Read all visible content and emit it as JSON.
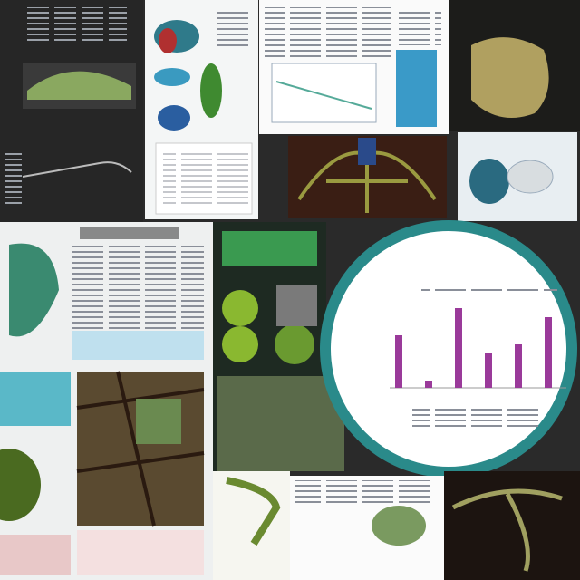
{
  "inset_chart": {
    "type": "bar",
    "values": [
      58,
      8,
      88,
      38,
      48,
      78
    ],
    "color": "#9a3a9a"
  }
}
